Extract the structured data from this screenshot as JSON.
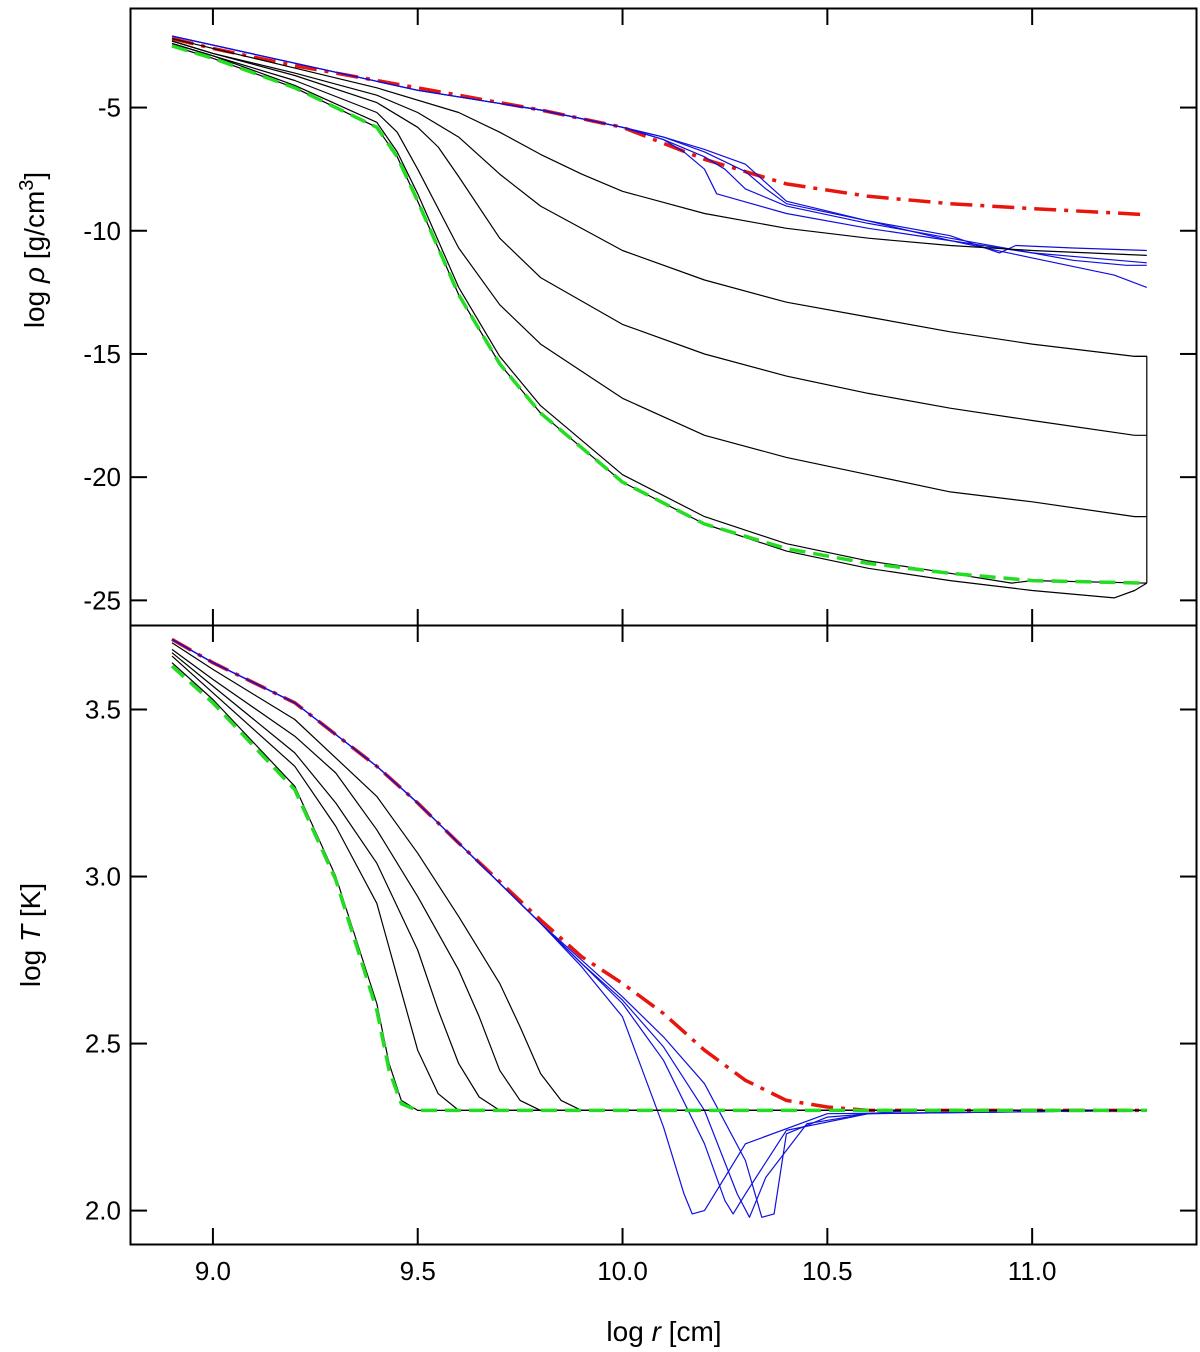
{
  "chart_data": [
    {
      "type": "line",
      "panel": "top",
      "title": "",
      "xlabel": "log r [cm]",
      "ylabel": "log ρ [g/cm³]",
      "ylabel_parts": {
        "prefix": "log ",
        "symbol": "ρ",
        "unit": " [g/cm",
        "exp": "3",
        "close": "]"
      },
      "xlim": [
        8.8,
        11.4
      ],
      "ylim": [
        -26,
        -1
      ],
      "yticks": [
        -5,
        -10,
        -15,
        -20,
        -25
      ],
      "ytick_labels": [
        "-5",
        "-10",
        "-15",
        "-20",
        "-25"
      ],
      "series": [
        {
          "name": "red-dashdot",
          "color": "#e8150d",
          "style": "dashdot",
          "x": [
            8.9,
            9.0,
            9.2,
            9.4,
            9.6,
            9.8,
            10.0,
            10.2,
            10.4,
            10.6,
            10.8,
            11.0,
            11.28
          ],
          "y": [
            -2.2,
            -2.6,
            -3.3,
            -3.9,
            -4.5,
            -5.1,
            -5.8,
            -7.1,
            -8.1,
            -8.6,
            -8.9,
            -9.1,
            -9.35
          ]
        },
        {
          "name": "blue-1",
          "color": "#1010dd",
          "style": "solid",
          "x": [
            8.9,
            9.2,
            9.5,
            9.8,
            10.0,
            10.1,
            10.15,
            10.2,
            10.23,
            10.4,
            10.6,
            10.8,
            11.0,
            11.28
          ],
          "y": [
            -2.1,
            -3.2,
            -4.3,
            -5.1,
            -5.8,
            -6.3,
            -6.8,
            -7.5,
            -8.5,
            -9.3,
            -9.9,
            -10.4,
            -10.9,
            -11.3
          ]
        },
        {
          "name": "blue-2",
          "color": "#1010dd",
          "style": "solid",
          "x": [
            8.9,
            9.2,
            9.5,
            9.8,
            10.0,
            10.1,
            10.2,
            10.25,
            10.3,
            10.4,
            10.6,
            10.8,
            11.0,
            11.1,
            11.23,
            11.28
          ],
          "y": [
            -2.1,
            -3.2,
            -4.3,
            -5.1,
            -5.8,
            -6.3,
            -7.0,
            -7.5,
            -8.3,
            -9.0,
            -9.7,
            -10.3,
            -10.9,
            -11.2,
            -11.4,
            -11.4
          ]
        },
        {
          "name": "blue-3",
          "color": "#1010dd",
          "style": "solid",
          "x": [
            8.9,
            9.2,
            9.5,
            9.8,
            10.0,
            10.1,
            10.2,
            10.3,
            10.35,
            10.4,
            10.6,
            10.8,
            11.0,
            11.2,
            11.28
          ],
          "y": [
            -2.1,
            -3.2,
            -4.3,
            -5.1,
            -5.8,
            -6.2,
            -6.8,
            -7.6,
            -8.3,
            -8.9,
            -9.6,
            -10.4,
            -11.1,
            -11.8,
            -12.3
          ]
        },
        {
          "name": "blue-4",
          "color": "#1010dd",
          "style": "solid",
          "x": [
            8.9,
            9.2,
            9.5,
            9.8,
            10.0,
            10.1,
            10.2,
            10.3,
            10.4,
            10.6,
            10.8,
            10.92,
            10.96,
            11.1,
            11.28
          ],
          "y": [
            -2.1,
            -3.2,
            -4.3,
            -5.1,
            -5.8,
            -6.2,
            -6.7,
            -7.3,
            -8.8,
            -9.6,
            -10.2,
            -10.9,
            -10.6,
            -10.7,
            -10.8
          ]
        },
        {
          "name": "black-1",
          "color": "#000000",
          "style": "solid",
          "x": [
            8.9,
            9.0,
            9.2,
            9.4,
            9.6,
            9.7,
            9.8,
            9.9,
            10.0,
            10.2,
            10.4,
            10.6,
            10.8,
            11.0,
            11.28
          ],
          "y": [
            -2.2,
            -2.6,
            -3.4,
            -4.2,
            -5.2,
            -6.0,
            -6.9,
            -7.7,
            -8.4,
            -9.3,
            -9.9,
            -10.3,
            -10.6,
            -10.8,
            -11.0
          ]
        },
        {
          "name": "black-2",
          "color": "#000000",
          "style": "solid",
          "x": [
            8.9,
            9.0,
            9.2,
            9.4,
            9.5,
            9.6,
            9.7,
            9.8,
            10.0,
            10.2,
            10.4,
            10.6,
            10.8,
            11.0,
            11.25,
            11.28
          ],
          "y": [
            -2.3,
            -2.8,
            -3.6,
            -4.5,
            -5.2,
            -6.2,
            -7.7,
            -9.0,
            -10.8,
            -12.0,
            -12.9,
            -13.5,
            -14.1,
            -14.6,
            -15.1,
            -15.1
          ]
        },
        {
          "name": "black-3",
          "color": "#000000",
          "style": "solid",
          "x": [
            8.9,
            9.0,
            9.2,
            9.4,
            9.5,
            9.55,
            9.6,
            9.7,
            9.8,
            10.0,
            10.2,
            10.4,
            10.6,
            10.8,
            11.0,
            11.25,
            11.28
          ],
          "y": [
            -2.3,
            -2.8,
            -3.7,
            -4.8,
            -5.8,
            -6.6,
            -7.8,
            -10.3,
            -11.9,
            -13.8,
            -15.0,
            -15.9,
            -16.6,
            -17.2,
            -17.7,
            -18.3,
            -18.3
          ]
        },
        {
          "name": "black-4",
          "color": "#000000",
          "style": "solid",
          "x": [
            8.9,
            9.0,
            9.2,
            9.4,
            9.45,
            9.5,
            9.6,
            9.7,
            9.8,
            10.0,
            10.2,
            10.4,
            10.6,
            10.8,
            11.0,
            11.25,
            11.28
          ],
          "y": [
            -2.4,
            -2.9,
            -3.9,
            -5.2,
            -6.0,
            -7.5,
            -10.7,
            -13.0,
            -14.6,
            -16.8,
            -18.3,
            -19.2,
            -19.9,
            -20.6,
            -21.0,
            -21.6,
            -21.6
          ]
        },
        {
          "name": "black-5",
          "color": "#000000",
          "style": "solid",
          "x": [
            8.9,
            9.0,
            9.2,
            9.4,
            9.45,
            9.5,
            9.6,
            9.7,
            9.8,
            10.0,
            10.2,
            10.4,
            10.6,
            10.8,
            10.95,
            11.0,
            11.28
          ],
          "y": [
            -2.4,
            -2.9,
            -4.1,
            -5.6,
            -6.8,
            -8.5,
            -12.3,
            -15.1,
            -17.1,
            -19.9,
            -21.6,
            -22.7,
            -23.4,
            -23.9,
            -24.3,
            -24.2,
            -24.3
          ]
        },
        {
          "name": "black-6",
          "color": "#000000",
          "style": "solid",
          "x": [
            8.9,
            9.0,
            9.2,
            9.4,
            9.45,
            9.5,
            9.6,
            9.7,
            9.8,
            10.0,
            10.2,
            10.4,
            10.6,
            10.8,
            11.0,
            11.2,
            11.25,
            11.28
          ],
          "y": [
            -2.5,
            -3.0,
            -4.2,
            -5.8,
            -7.0,
            -8.8,
            -12.6,
            -15.4,
            -17.4,
            -20.2,
            -21.9,
            -23.0,
            -23.7,
            -24.2,
            -24.6,
            -24.9,
            -24.6,
            -24.3
          ]
        },
        {
          "name": "black-edge",
          "color": "#000000",
          "style": "solid",
          "x": [
            11.25,
            11.28,
            11.28,
            11.28
          ],
          "y": [
            -15.1,
            -15.1,
            -24.3,
            -24.3
          ]
        },
        {
          "name": "green-dashed",
          "color": "#22dd22",
          "style": "dashed",
          "x": [
            8.9,
            9.0,
            9.2,
            9.4,
            9.45,
            9.5,
            9.6,
            9.7,
            9.8,
            10.0,
            10.2,
            10.4,
            10.6,
            10.8,
            11.0,
            11.28
          ],
          "y": [
            -2.5,
            -3.0,
            -4.2,
            -5.8,
            -7.0,
            -8.8,
            -12.6,
            -15.4,
            -17.4,
            -20.2,
            -21.9,
            -22.9,
            -23.5,
            -23.9,
            -24.2,
            -24.3
          ]
        }
      ]
    },
    {
      "type": "line",
      "panel": "bottom",
      "title": "",
      "xlabel": "log r [cm]",
      "ylabel": "log T [K]",
      "ylabel_parts": {
        "prefix": "log ",
        "symbol": "T",
        "unit": " [K]"
      },
      "xlim": [
        8.8,
        11.4
      ],
      "ylim": [
        1.9,
        3.75
      ],
      "xticks": [
        9.0,
        9.5,
        10.0,
        10.5,
        11.0
      ],
      "xtick_labels": [
        "9.0",
        "9.5",
        "10.0",
        "10.5",
        "11.0"
      ],
      "yticks": [
        2.0,
        2.5,
        3.0,
        3.5
      ],
      "ytick_labels": [
        "2.0",
        "2.5",
        "3.0",
        "3.5"
      ],
      "series": [
        {
          "name": "red-dashdot",
          "color": "#e8150d",
          "style": "dashdot",
          "x": [
            8.9,
            9.0,
            9.2,
            9.4,
            9.5,
            9.6,
            9.8,
            9.9,
            10.0,
            10.1,
            10.2,
            10.3,
            10.4,
            10.5,
            10.6,
            11.28
          ],
          "y": [
            3.71,
            3.64,
            3.52,
            3.33,
            3.22,
            3.1,
            2.87,
            2.76,
            2.68,
            2.59,
            2.48,
            2.39,
            2.33,
            2.31,
            2.3,
            2.3
          ]
        },
        {
          "name": "blue-1",
          "color": "#1010dd",
          "style": "solid",
          "x": [
            8.9,
            9.0,
            9.2,
            9.4,
            9.5,
            9.6,
            9.8,
            9.9,
            10.0,
            10.1,
            10.15,
            10.17,
            10.2,
            10.3,
            10.5,
            11.28
          ],
          "y": [
            3.71,
            3.64,
            3.52,
            3.33,
            3.22,
            3.1,
            2.86,
            2.73,
            2.58,
            2.25,
            2.05,
            1.99,
            2.0,
            2.2,
            2.29,
            2.3
          ]
        },
        {
          "name": "blue-2",
          "color": "#1010dd",
          "style": "solid",
          "x": [
            8.9,
            9.0,
            9.2,
            9.4,
            9.5,
            9.6,
            9.8,
            9.9,
            10.0,
            10.1,
            10.2,
            10.25,
            10.27,
            10.3,
            10.4,
            10.6,
            11.28
          ],
          "y": [
            3.71,
            3.64,
            3.52,
            3.33,
            3.22,
            3.1,
            2.86,
            2.74,
            2.62,
            2.45,
            2.2,
            2.03,
            1.99,
            2.05,
            2.24,
            2.29,
            2.3
          ]
        },
        {
          "name": "blue-3",
          "color": "#1010dd",
          "style": "solid",
          "x": [
            8.9,
            9.0,
            9.2,
            9.4,
            9.5,
            9.6,
            9.8,
            9.9,
            10.0,
            10.1,
            10.2,
            10.28,
            10.31,
            10.35,
            10.45,
            10.6,
            11.28
          ],
          "y": [
            3.71,
            3.64,
            3.52,
            3.33,
            3.22,
            3.1,
            2.86,
            2.74,
            2.63,
            2.49,
            2.3,
            2.05,
            1.98,
            2.1,
            2.26,
            2.29,
            2.3
          ]
        },
        {
          "name": "blue-4",
          "color": "#1010dd",
          "style": "solid",
          "x": [
            8.9,
            9.0,
            9.2,
            9.4,
            9.5,
            9.6,
            9.8,
            9.9,
            10.0,
            10.1,
            10.2,
            10.3,
            10.34,
            10.37,
            10.4,
            10.5,
            10.7,
            11.28
          ],
          "y": [
            3.71,
            3.64,
            3.52,
            3.33,
            3.22,
            3.1,
            2.86,
            2.75,
            2.64,
            2.52,
            2.38,
            2.15,
            1.98,
            1.99,
            2.23,
            2.28,
            2.3,
            2.3
          ]
        },
        {
          "name": "black-1",
          "color": "#000000",
          "style": "solid",
          "x": [
            8.9,
            9.0,
            9.2,
            9.4,
            9.5,
            9.6,
            9.7,
            9.75,
            9.8,
            9.85,
            9.9,
            11.28
          ],
          "y": [
            3.7,
            3.62,
            3.47,
            3.24,
            3.07,
            2.88,
            2.68,
            2.55,
            2.41,
            2.33,
            2.3,
            2.3
          ]
        },
        {
          "name": "black-2",
          "color": "#000000",
          "style": "solid",
          "x": [
            8.9,
            9.0,
            9.2,
            9.3,
            9.4,
            9.5,
            9.6,
            9.65,
            9.7,
            9.75,
            9.8,
            11.28
          ],
          "y": [
            3.68,
            3.59,
            3.42,
            3.31,
            3.14,
            2.94,
            2.72,
            2.58,
            2.42,
            2.33,
            2.3,
            2.3
          ]
        },
        {
          "name": "black-3",
          "color": "#000000",
          "style": "solid",
          "x": [
            8.9,
            9.0,
            9.2,
            9.3,
            9.4,
            9.5,
            9.55,
            9.6,
            9.65,
            9.7,
            11.28
          ],
          "y": [
            3.67,
            3.57,
            3.37,
            3.22,
            3.04,
            2.78,
            2.6,
            2.44,
            2.34,
            2.3,
            2.3
          ]
        },
        {
          "name": "black-4",
          "color": "#000000",
          "style": "solid",
          "x": [
            8.9,
            9.0,
            9.2,
            9.3,
            9.4,
            9.45,
            9.5,
            9.55,
            9.6,
            11.28
          ],
          "y": [
            3.66,
            3.55,
            3.33,
            3.15,
            2.92,
            2.7,
            2.48,
            2.35,
            2.3,
            2.3
          ]
        },
        {
          "name": "black-5",
          "color": "#000000",
          "style": "solid",
          "x": [
            8.9,
            9.0,
            9.2,
            9.3,
            9.4,
            9.43,
            9.46,
            9.5,
            11.28
          ],
          "y": [
            3.64,
            3.53,
            3.27,
            3.0,
            2.62,
            2.44,
            2.33,
            2.3,
            2.3
          ]
        },
        {
          "name": "green-dashed",
          "color": "#22dd22",
          "style": "dashed",
          "x": [
            8.9,
            9.0,
            9.2,
            9.3,
            9.4,
            9.43,
            9.46,
            9.5,
            11.28
          ],
          "y": [
            3.63,
            3.52,
            3.26,
            2.99,
            2.6,
            2.42,
            2.32,
            2.3,
            2.3
          ]
        }
      ]
    }
  ]
}
